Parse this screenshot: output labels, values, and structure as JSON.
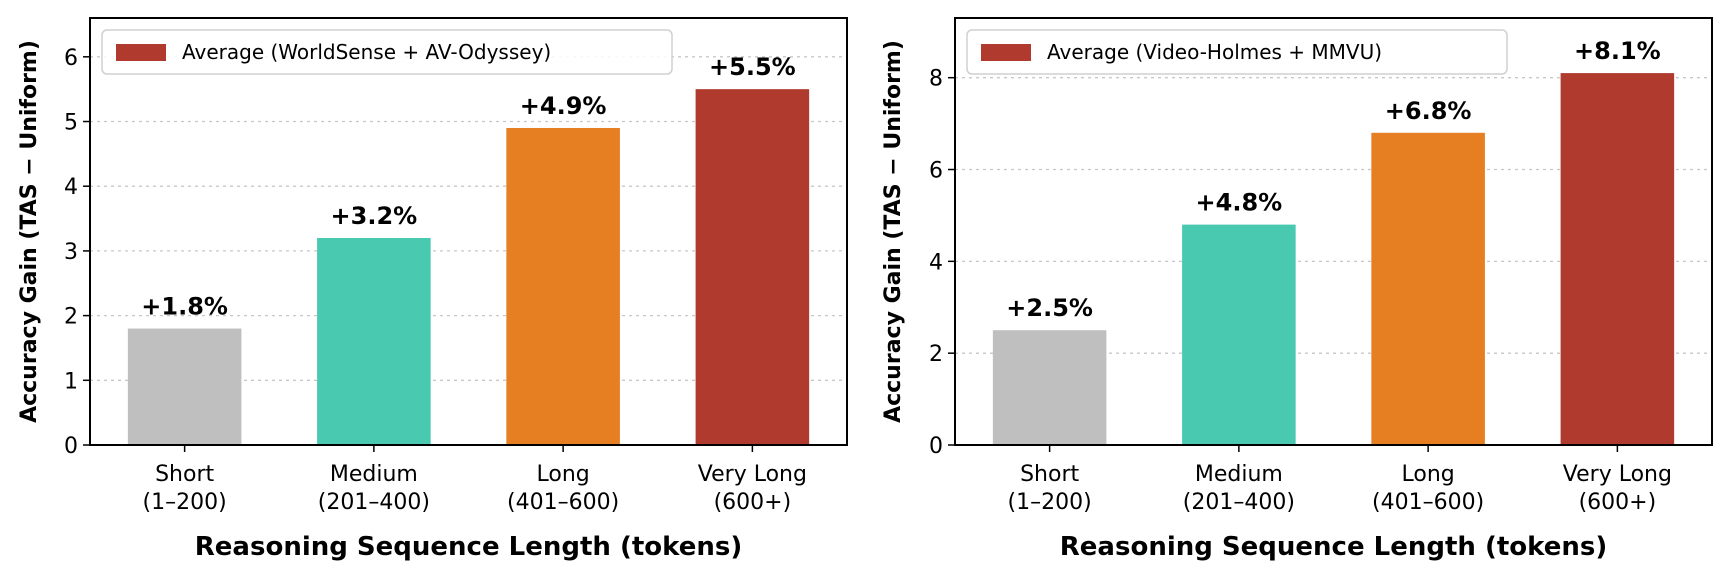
{
  "chart_data": [
    {
      "type": "bar",
      "legend": "Average (WorldSense + AV-Odyssey)",
      "legend_position": "top-left",
      "categories": [
        "Short\n(1–200)",
        "Medium\n(201–400)",
        "Long\n(401–600)",
        "Very Long\n(600+)"
      ],
      "values": [
        1.8,
        3.2,
        4.9,
        5.5
      ],
      "data_labels": [
        "+1.8%",
        "+3.2%",
        "+4.9%",
        "+5.5%"
      ],
      "colors": [
        "#bfbfbf",
        "#48c9b0",
        "#e67e22",
        "#b03a2e"
      ],
      "xlabel": "Reasoning Sequence Length (tokens)",
      "ylabel": "Accuracy Gain (TAS − Uniform)",
      "ylim": [
        0,
        6.6
      ],
      "yticks": [
        0,
        1,
        2,
        3,
        4,
        5,
        6
      ],
      "grid": "horizontal dotted"
    },
    {
      "type": "bar",
      "legend": "Average (Video-Holmes + MMVU)",
      "legend_position": "top-left",
      "categories": [
        "Short\n(1–200)",
        "Medium\n(201–400)",
        "Long\n(401–600)",
        "Very Long\n(600+)"
      ],
      "values": [
        2.5,
        4.8,
        6.8,
        8.1
      ],
      "data_labels": [
        "+2.5%",
        "+4.8%",
        "+6.8%",
        "+8.1%"
      ],
      "colors": [
        "#bfbfbf",
        "#48c9b0",
        "#e67e22",
        "#b03a2e"
      ],
      "xlabel": "Reasoning Sequence Length (tokens)",
      "ylabel": "Accuracy Gain (TAS − Uniform)",
      "ylim": [
        0,
        9.3
      ],
      "yticks": [
        0,
        2,
        4,
        6,
        8
      ],
      "grid": "horizontal dotted"
    }
  ]
}
